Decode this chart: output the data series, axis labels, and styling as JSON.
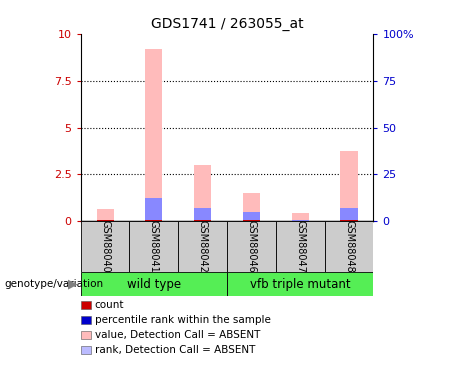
{
  "title": "GDS1741 / 263055_at",
  "samples": [
    "GSM88040",
    "GSM88041",
    "GSM88042",
    "GSM88046",
    "GSM88047",
    "GSM88048"
  ],
  "pink_bar_heights": [
    0.68,
    9.2,
    3.0,
    1.5,
    0.45,
    3.75
  ],
  "red_bar_heights": [
    0.05,
    0.08,
    0.06,
    0.05,
    0.04,
    0.06
  ],
  "blue_bar_heights": [
    0.04,
    1.15,
    0.65,
    0.45,
    0.03,
    0.65
  ],
  "ylim": [
    0,
    10
  ],
  "yticks_left": [
    0,
    2.5,
    5.0,
    7.5,
    10
  ],
  "ytick_labels_left": [
    "0",
    "2.5",
    "5",
    "7.5",
    "10"
  ],
  "ytick_labels_right": [
    "0",
    "25",
    "50",
    "75",
    "100%"
  ],
  "bar_width": 0.35,
  "pink_color": "#ffbbbb",
  "red_color": "#cc0000",
  "blue_color": "#8888ff",
  "label_area_color": "#cccccc",
  "green_color": "#55ee55",
  "legend_items": [
    {
      "color": "#cc0000",
      "label": "count"
    },
    {
      "color": "#0000cc",
      "label": "percentile rank within the sample"
    },
    {
      "color": "#ffbbbb",
      "label": "value, Detection Call = ABSENT"
    },
    {
      "color": "#bbbbff",
      "label": "rank, Detection Call = ABSENT"
    }
  ],
  "genotype_label": "genotype/variation"
}
